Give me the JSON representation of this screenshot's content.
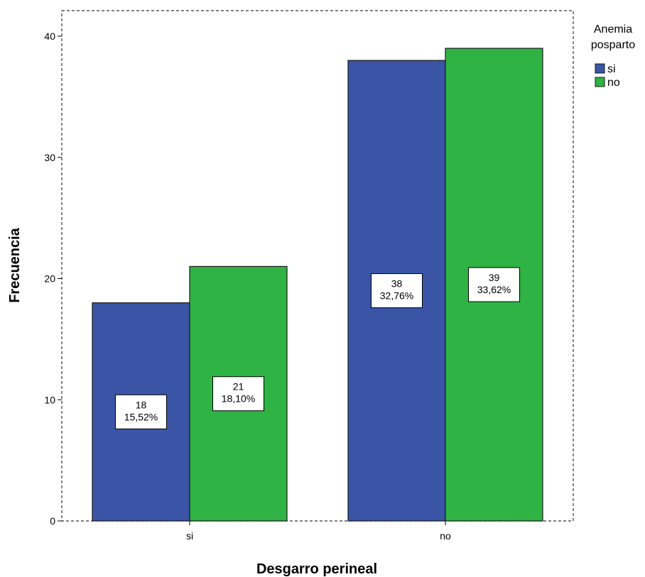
{
  "chart_data": {
    "type": "bar",
    "xlabel": "Desgarro perineal",
    "ylabel": "Frecuencia",
    "categories": [
      "si",
      "no"
    ],
    "ylim": [
      0,
      42
    ],
    "yticks": [
      0,
      10,
      20,
      30,
      40
    ],
    "legend": {
      "title_lines": [
        "Anemia",
        "posparto"
      ],
      "placement": "top-right, outside plot"
    },
    "series": [
      {
        "name": "si",
        "color": "#3a55a5",
        "values": [
          18,
          38
        ],
        "percent_labels": [
          "15,52%",
          "32,76%"
        ]
      },
      {
        "name": "no",
        "color": "#2fb344",
        "values": [
          21,
          39
        ],
        "percent_labels": [
          "18,10%",
          "33,62%"
        ]
      }
    ],
    "grid": false,
    "frame": "dashed"
  }
}
